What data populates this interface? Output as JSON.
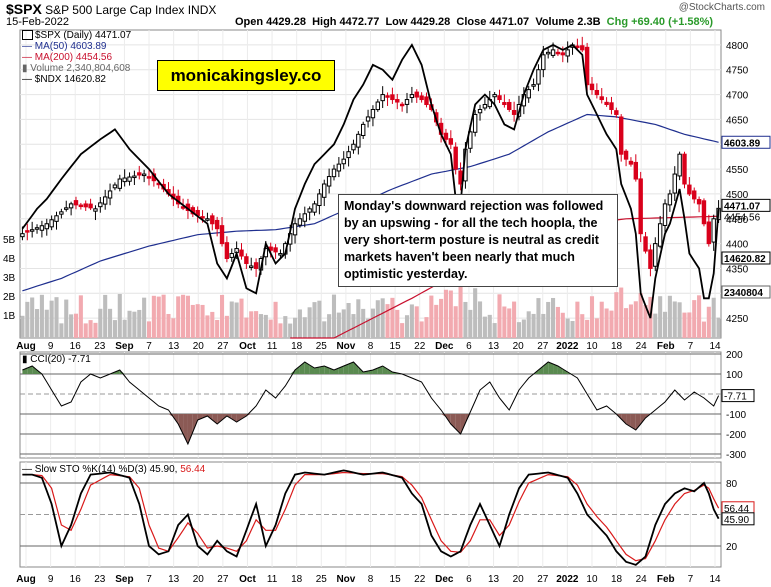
{
  "header": {
    "symbol": "$SPX",
    "name": "S&P 500 Large Cap Index",
    "exchange": "INDX",
    "date": "15-Feb-2022",
    "open": "Open 4429.28",
    "high": "High 4472.77",
    "low": "Low 4429.28",
    "close": "Close 4471.07",
    "volume": "Volume 2.3B",
    "chg": "Chg +69.40 (+1.58%)",
    "credit": "@StockCharts.com"
  },
  "legend": {
    "spx": "$SPX (Daily) 4471.07",
    "ma50": "MA(50) 4603.89",
    "ma200": "MA(200) 4454.56",
    "volume": "Volume 2,340,804,608",
    "ndx": "$NDX 14620.82"
  },
  "brand": "monicakingsley.co",
  "annotation": "Monday's downward rejection was followed by an upswing - for all the tech hoopla, the very short-term posture is neutral as credit markets haven't been nearly that much optimistic yesterday.",
  "colors": {
    "up": "#000000",
    "down": "#d9001b",
    "ma50": "#1f2f8f",
    "ma200": "#c8102e",
    "cci_pos": "#5a8a50",
    "cci_neg": "#8b5a55",
    "pct_k": "#000000",
    "pct_d": "#d91a1a"
  },
  "cci_panel": {
    "title": "CCI(20) -7.71",
    "value_label": "-7.71",
    "ticks": [
      "200",
      "100",
      "-100",
      "-200",
      "-300"
    ]
  },
  "sto_panel": {
    "title": "Slow STO %K(14) %D(3) 45.90, 56.44",
    "title_k": "Slow STO %K(14) %D(3) 45.90,",
    "title_d": "56.44",
    "k_label": "45.90",
    "d_label": "56.44",
    "ticks": [
      "80",
      "20"
    ]
  },
  "price_labels": {
    "spx": "4471.07",
    "ma200": "4454.56",
    "ma50": "4603.89",
    "ndx": "14620.82",
    "vol": "2340804"
  },
  "chart_data": {
    "type": "candlestick",
    "price_axis": {
      "ticks": [
        4250,
        4300,
        4350,
        4400,
        4450,
        4500,
        4550,
        4600,
        4650,
        4700,
        4750,
        4800
      ],
      "labels": [
        "4250",
        "4300",
        "4350",
        "4400",
        "4450",
        "4500",
        "4550",
        "4600",
        "4650",
        "4700",
        "4750",
        "4800"
      ],
      "range": [
        4210,
        4830
      ]
    },
    "left_axis": {
      "labels": [
        "5B",
        "4B",
        "3B",
        "2B",
        "1B"
      ]
    },
    "x_labels": [
      "Aug",
      "9",
      "16",
      "23",
      "Sep",
      "7",
      "13",
      "20",
      "27",
      "Oct",
      "11",
      "18",
      "25",
      "Nov",
      "8",
      "15",
      "22",
      "Dec",
      "6",
      "13",
      "20",
      "27",
      "2022",
      "10",
      "18",
      "24",
      "Feb",
      "7",
      "14"
    ],
    "bold_x_labels": [
      "Aug",
      "Sep",
      "Oct",
      "Nov",
      "Dec",
      "2022",
      "Feb"
    ],
    "close_anchors": [
      [
        0,
        4420
      ],
      [
        5,
        4440
      ],
      [
        10,
        4480
      ],
      [
        15,
        4470
      ],
      [
        20,
        4530
      ],
      [
        25,
        4540
      ],
      [
        28,
        4520
      ],
      [
        32,
        4480
      ],
      [
        35,
        4460
      ],
      [
        38,
        4450
      ],
      [
        40,
        4430
      ],
      [
        42,
        4370
      ],
      [
        44,
        4390
      ],
      [
        46,
        4360
      ],
      [
        48,
        4350
      ],
      [
        50,
        4390
      ],
      [
        53,
        4380
      ],
      [
        56,
        4440
      ],
      [
        58,
        4460
      ],
      [
        60,
        4480
      ],
      [
        62,
        4520
      ],
      [
        64,
        4550
      ],
      [
        66,
        4570
      ],
      [
        68,
        4600
      ],
      [
        70,
        4640
      ],
      [
        72,
        4670
      ],
      [
        74,
        4700
      ],
      [
        76,
        4690
      ],
      [
        78,
        4680
      ],
      [
        80,
        4700
      ],
      [
        82,
        4690
      ],
      [
        84,
        4670
      ],
      [
        86,
        4620
      ],
      [
        88,
        4600
      ],
      [
        89,
        4550
      ],
      [
        90,
        4520
      ],
      [
        91,
        4590
      ],
      [
        93,
        4660
      ],
      [
        95,
        4680
      ],
      [
        97,
        4700
      ],
      [
        99,
        4680
      ],
      [
        101,
        4660
      ],
      [
        103,
        4700
      ],
      [
        105,
        4720
      ],
      [
        107,
        4780
      ],
      [
        109,
        4790
      ],
      [
        111,
        4780
      ],
      [
        113,
        4800
      ],
      [
        115,
        4790
      ],
      [
        116,
        4720
      ],
      [
        118,
        4700
      ],
      [
        120,
        4680
      ],
      [
        122,
        4660
      ],
      [
        123,
        4580
      ],
      [
        125,
        4560
      ],
      [
        126,
        4530
      ],
      [
        127,
        4420
      ],
      [
        129,
        4350
      ],
      [
        130,
        4400
      ],
      [
        132,
        4480
      ],
      [
        133,
        4500
      ],
      [
        135,
        4580
      ],
      [
        136,
        4520
      ],
      [
        137,
        4500
      ],
      [
        139,
        4480
      ],
      [
        140,
        4440
      ],
      [
        141,
        4400
      ],
      [
        142,
        4450
      ],
      [
        143,
        4471
      ]
    ],
    "ma50_anchors": [
      [
        0,
        4305
      ],
      [
        8,
        4330
      ],
      [
        16,
        4365
      ],
      [
        26,
        4395
      ],
      [
        36,
        4418
      ],
      [
        44,
        4425
      ],
      [
        52,
        4428
      ],
      [
        60,
        4440
      ],
      [
        68,
        4475
      ],
      [
        76,
        4510
      ],
      [
        84,
        4540
      ],
      [
        92,
        4555
      ],
      [
        100,
        4580
      ],
      [
        108,
        4625
      ],
      [
        116,
        4660
      ],
      [
        122,
        4655
      ],
      [
        130,
        4640
      ],
      [
        136,
        4620
      ],
      [
        143,
        4604
      ]
    ],
    "ma200_anchors": [
      [
        55,
        4165
      ],
      [
        68,
        4230
      ],
      [
        80,
        4290
      ],
      [
        92,
        4355
      ],
      [
        104,
        4400
      ],
      [
        116,
        4440
      ],
      [
        124,
        4450
      ],
      [
        132,
        4452
      ],
      [
        143,
        4455
      ]
    ],
    "ndx_anchors": [
      [
        0,
        4430
      ],
      [
        3,
        4470
      ],
      [
        5,
        4490
      ],
      [
        8,
        4530
      ],
      [
        12,
        4580
      ],
      [
        16,
        4610
      ],
      [
        19,
        4630
      ],
      [
        22,
        4590
      ],
      [
        26,
        4550
      ],
      [
        30,
        4500
      ],
      [
        34,
        4470
      ],
      [
        38,
        4440
      ],
      [
        40,
        4360
      ],
      [
        42,
        4330
      ],
      [
        44,
        4380
      ],
      [
        46,
        4310
      ],
      [
        48,
        4300
      ],
      [
        50,
        4400
      ],
      [
        52,
        4360
      ],
      [
        54,
        4380
      ],
      [
        56,
        4470
      ],
      [
        58,
        4520
      ],
      [
        60,
        4560
      ],
      [
        62,
        4580
      ],
      [
        64,
        4600
      ],
      [
        66,
        4640
      ],
      [
        68,
        4690
      ],
      [
        70,
        4720
      ],
      [
        72,
        4760
      ],
      [
        74,
        4750
      ],
      [
        76,
        4730
      ],
      [
        78,
        4770
      ],
      [
        80,
        4800
      ],
      [
        82,
        4760
      ],
      [
        84,
        4680
      ],
      [
        86,
        4620
      ],
      [
        88,
        4580
      ],
      [
        89,
        4490
      ],
      [
        90,
        4480
      ],
      [
        91,
        4590
      ],
      [
        93,
        4680
      ],
      [
        95,
        4700
      ],
      [
        97,
        4680
      ],
      [
        99,
        4640
      ],
      [
        101,
        4630
      ],
      [
        103,
        4700
      ],
      [
        105,
        4750
      ],
      [
        107,
        4790
      ],
      [
        109,
        4800
      ],
      [
        111,
        4790
      ],
      [
        113,
        4800
      ],
      [
        115,
        4780
      ],
      [
        116,
        4700
      ],
      [
        118,
        4660
      ],
      [
        120,
        4620
      ],
      [
        122,
        4590
      ],
      [
        123,
        4520
      ],
      [
        125,
        4470
      ],
      [
        126,
        4420
      ],
      [
        127,
        4300
      ],
      [
        129,
        4250
      ],
      [
        130,
        4330
      ],
      [
        132,
        4420
      ],
      [
        133,
        4440
      ],
      [
        135,
        4510
      ],
      [
        136,
        4450
      ],
      [
        137,
        4380
      ],
      [
        139,
        4350
      ],
      [
        140,
        4290
      ],
      [
        141,
        4290
      ],
      [
        142,
        4340
      ],
      [
        143,
        4470
      ]
    ],
    "cci_axis": {
      "ticks": [
        200,
        100,
        0,
        -100,
        -200,
        -300
      ],
      "range": [
        -320,
        210
      ]
    },
    "cci_anchors": [
      [
        0,
        120
      ],
      [
        2,
        140
      ],
      [
        4,
        100
      ],
      [
        6,
        20
      ],
      [
        8,
        -60
      ],
      [
        10,
        -40
      ],
      [
        12,
        60
      ],
      [
        14,
        100
      ],
      [
        16,
        80
      ],
      [
        18,
        100
      ],
      [
        20,
        120
      ],
      [
        22,
        60
      ],
      [
        24,
        20
      ],
      [
        26,
        -20
      ],
      [
        28,
        -60
      ],
      [
        30,
        -80
      ],
      [
        32,
        -150
      ],
      [
        34,
        -250
      ],
      [
        36,
        -130
      ],
      [
        38,
        -110
      ],
      [
        40,
        -150
      ],
      [
        42,
        -110
      ],
      [
        44,
        -140
      ],
      [
        46,
        -110
      ],
      [
        48,
        -60
      ],
      [
        50,
        20
      ],
      [
        52,
        -20
      ],
      [
        54,
        40
      ],
      [
        56,
        120
      ],
      [
        58,
        160
      ],
      [
        60,
        130
      ],
      [
        62,
        140
      ],
      [
        64,
        120
      ],
      [
        66,
        140
      ],
      [
        68,
        160
      ],
      [
        70,
        110
      ],
      [
        72,
        120
      ],
      [
        74,
        140
      ],
      [
        76,
        110
      ],
      [
        78,
        100
      ],
      [
        80,
        80
      ],
      [
        82,
        60
      ],
      [
        84,
        -20
      ],
      [
        86,
        -80
      ],
      [
        88,
        -150
      ],
      [
        90,
        -200
      ],
      [
        92,
        -90
      ],
      [
        94,
        20
      ],
      [
        96,
        60
      ],
      [
        98,
        -20
      ],
      [
        100,
        -80
      ],
      [
        102,
        20
      ],
      [
        104,
        80
      ],
      [
        106,
        120
      ],
      [
        108,
        160
      ],
      [
        110,
        140
      ],
      [
        112,
        110
      ],
      [
        114,
        80
      ],
      [
        116,
        0
      ],
      [
        118,
        -80
      ],
      [
        120,
        -60
      ],
      [
        122,
        -100
      ],
      [
        124,
        -150
      ],
      [
        126,
        -180
      ],
      [
        128,
        -120
      ],
      [
        130,
        -80
      ],
      [
        132,
        -40
      ],
      [
        134,
        20
      ],
      [
        136,
        -30
      ],
      [
        138,
        10
      ],
      [
        140,
        -20
      ],
      [
        142,
        -60
      ],
      [
        143,
        -8
      ]
    ],
    "sto_axis": {
      "ticks": [
        80,
        20
      ],
      "range": [
        0,
        100
      ]
    },
    "k_anchors": [
      [
        0,
        88
      ],
      [
        2,
        88
      ],
      [
        4,
        85
      ],
      [
        6,
        60
      ],
      [
        8,
        20
      ],
      [
        10,
        40
      ],
      [
        12,
        70
      ],
      [
        14,
        88
      ],
      [
        18,
        90
      ],
      [
        22,
        85
      ],
      [
        24,
        60
      ],
      [
        26,
        20
      ],
      [
        28,
        12
      ],
      [
        30,
        15
      ],
      [
        32,
        40
      ],
      [
        34,
        50
      ],
      [
        36,
        20
      ],
      [
        38,
        12
      ],
      [
        40,
        25
      ],
      [
        42,
        15
      ],
      [
        44,
        10
      ],
      [
        46,
        35
      ],
      [
        48,
        60
      ],
      [
        50,
        20
      ],
      [
        52,
        40
      ],
      [
        54,
        70
      ],
      [
        56,
        88
      ],
      [
        58,
        90
      ],
      [
        62,
        88
      ],
      [
        66,
        92
      ],
      [
        70,
        88
      ],
      [
        74,
        90
      ],
      [
        78,
        85
      ],
      [
        80,
        70
      ],
      [
        82,
        60
      ],
      [
        84,
        30
      ],
      [
        86,
        15
      ],
      [
        88,
        10
      ],
      [
        90,
        15
      ],
      [
        92,
        40
      ],
      [
        94,
        60
      ],
      [
        96,
        40
      ],
      [
        98,
        20
      ],
      [
        100,
        50
      ],
      [
        102,
        75
      ],
      [
        104,
        88
      ],
      [
        108,
        90
      ],
      [
        112,
        85
      ],
      [
        114,
        70
      ],
      [
        116,
        50
      ],
      [
        118,
        40
      ],
      [
        120,
        30
      ],
      [
        122,
        15
      ],
      [
        124,
        5
      ],
      [
        126,
        2
      ],
      [
        128,
        10
      ],
      [
        130,
        40
      ],
      [
        132,
        60
      ],
      [
        134,
        70
      ],
      [
        136,
        75
      ],
      [
        138,
        72
      ],
      [
        140,
        80
      ],
      [
        141,
        70
      ],
      [
        142,
        55
      ],
      [
        143,
        46
      ]
    ],
    "d_anchors": [
      [
        0,
        88
      ],
      [
        2,
        88
      ],
      [
        4,
        87
      ],
      [
        6,
        75
      ],
      [
        8,
        40
      ],
      [
        10,
        35
      ],
      [
        12,
        55
      ],
      [
        14,
        78
      ],
      [
        18,
        88
      ],
      [
        22,
        86
      ],
      [
        24,
        75
      ],
      [
        26,
        40
      ],
      [
        28,
        18
      ],
      [
        30,
        15
      ],
      [
        32,
        28
      ],
      [
        34,
        42
      ],
      [
        36,
        32
      ],
      [
        38,
        18
      ],
      [
        40,
        20
      ],
      [
        42,
        18
      ],
      [
        44,
        15
      ],
      [
        46,
        25
      ],
      [
        48,
        45
      ],
      [
        50,
        35
      ],
      [
        52,
        35
      ],
      [
        54,
        55
      ],
      [
        56,
        78
      ],
      [
        58,
        88
      ],
      [
        62,
        88
      ],
      [
        66,
        90
      ],
      [
        70,
        89
      ],
      [
        74,
        89
      ],
      [
        78,
        86
      ],
      [
        80,
        78
      ],
      [
        82,
        66
      ],
      [
        84,
        45
      ],
      [
        86,
        25
      ],
      [
        88,
        15
      ],
      [
        90,
        14
      ],
      [
        92,
        25
      ],
      [
        94,
        45
      ],
      [
        96,
        45
      ],
      [
        98,
        30
      ],
      [
        100,
        40
      ],
      [
        102,
        62
      ],
      [
        104,
        80
      ],
      [
        108,
        88
      ],
      [
        112,
        86
      ],
      [
        114,
        78
      ],
      [
        116,
        60
      ],
      [
        118,
        48
      ],
      [
        120,
        38
      ],
      [
        122,
        25
      ],
      [
        124,
        12
      ],
      [
        126,
        6
      ],
      [
        128,
        8
      ],
      [
        130,
        25
      ],
      [
        132,
        45
      ],
      [
        134,
        60
      ],
      [
        136,
        70
      ],
      [
        138,
        73
      ],
      [
        140,
        78
      ],
      [
        141,
        75
      ],
      [
        142,
        65
      ],
      [
        143,
        56
      ]
    ]
  }
}
